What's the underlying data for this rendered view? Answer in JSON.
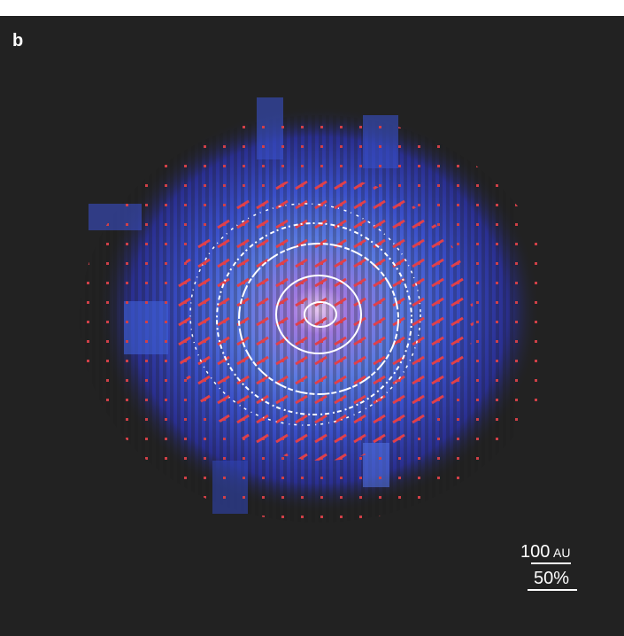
{
  "panel_label": "b",
  "scale_bars": {
    "distance": {
      "number": "100",
      "unit": "AU"
    },
    "polarization": {
      "label": "50%"
    }
  }
}
